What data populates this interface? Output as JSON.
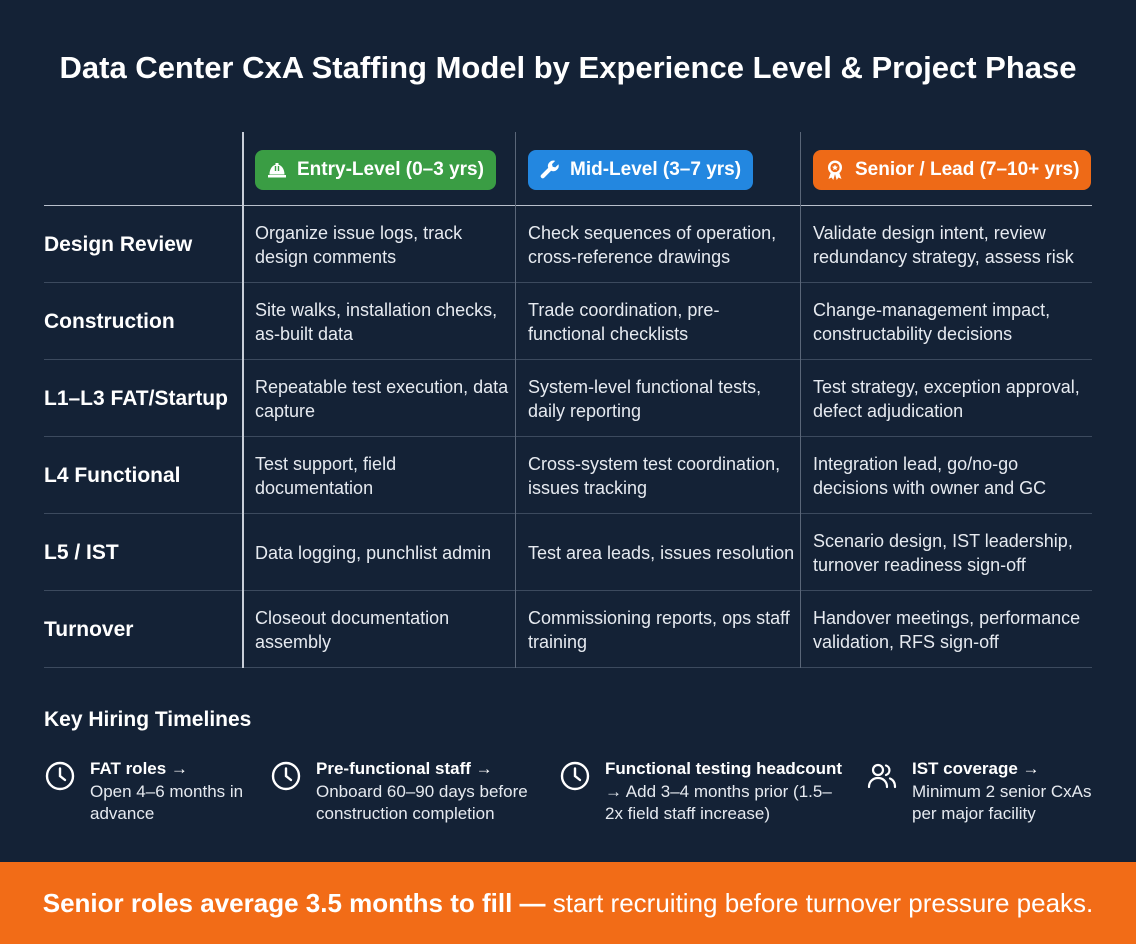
{
  "title": "Data Center CxA Staffing Model by Experience Level & Project Phase",
  "levels": [
    {
      "label": "Entry-Level (0–3 yrs)",
      "icon": "hard-hat-icon",
      "color": "#3a9d44"
    },
    {
      "label": "Mid-Level (3–7 yrs)",
      "icon": "wrench-icon",
      "color": "#2387e0"
    },
    {
      "label": "Senior / Lead (7–10+ yrs)",
      "icon": "award-badge-icon",
      "color": "#ee6a17"
    }
  ],
  "rows": [
    {
      "phase": "Design Review",
      "entry": "Organize issue logs, track design comments",
      "mid": "Check sequences of operation, cross-reference drawings",
      "senior": "Validate design intent, review redundancy strategy, assess risk"
    },
    {
      "phase": "Construction",
      "entry": "Site walks, installation checks, as-built data",
      "mid": "Trade coordination, pre-functional checklists",
      "senior": "Change-management impact, constructability decisions"
    },
    {
      "phase": "L1–L3 FAT/Startup",
      "entry": "Repeatable test execution, data capture",
      "mid": "System-level functional tests, daily reporting",
      "senior": "Test strategy, exception approval, defect adjudication"
    },
    {
      "phase": "L4 Functional",
      "entry": "Test support, field documentation",
      "mid": "Cross-system test coordination, issues tracking",
      "senior": "Integration lead, go/no-go decisions with owner and GC"
    },
    {
      "phase": "L5 / IST",
      "entry": "Data logging, punchlist admin",
      "mid": "Test area leads, issues resolution",
      "senior": "Scenario design, IST leadership, turnover readiness sign-off"
    },
    {
      "phase": "Turnover",
      "entry": "Closeout documentation assembly",
      "mid": "Commissioning reports, ops staff training",
      "senior": "Handover meetings, performance validation, RFS sign-off"
    }
  ],
  "timelines": {
    "title": "Key Hiring Timelines",
    "items": [
      {
        "icon": "clock-icon",
        "head": "FAT roles →",
        "body": "Open 4–6 months in advance"
      },
      {
        "icon": "clock-icon",
        "head": "Pre-functional staff →",
        "body": "Onboard 60–90 days before construction completion"
      },
      {
        "icon": "clock-icon",
        "head": "Functional testing headcount",
        "body": "→ Add 3–4 months prior (1.5–2x field staff increase)"
      },
      {
        "icon": "users-icon",
        "head": "IST coverage →",
        "body": "Minimum 2 senior CxAs per major facility"
      }
    ]
  },
  "banner": {
    "bold": "Senior roles average 3.5 months to fill —",
    "rest": " start recruiting before turnover pressure peaks.",
    "color": "#f26c17"
  }
}
